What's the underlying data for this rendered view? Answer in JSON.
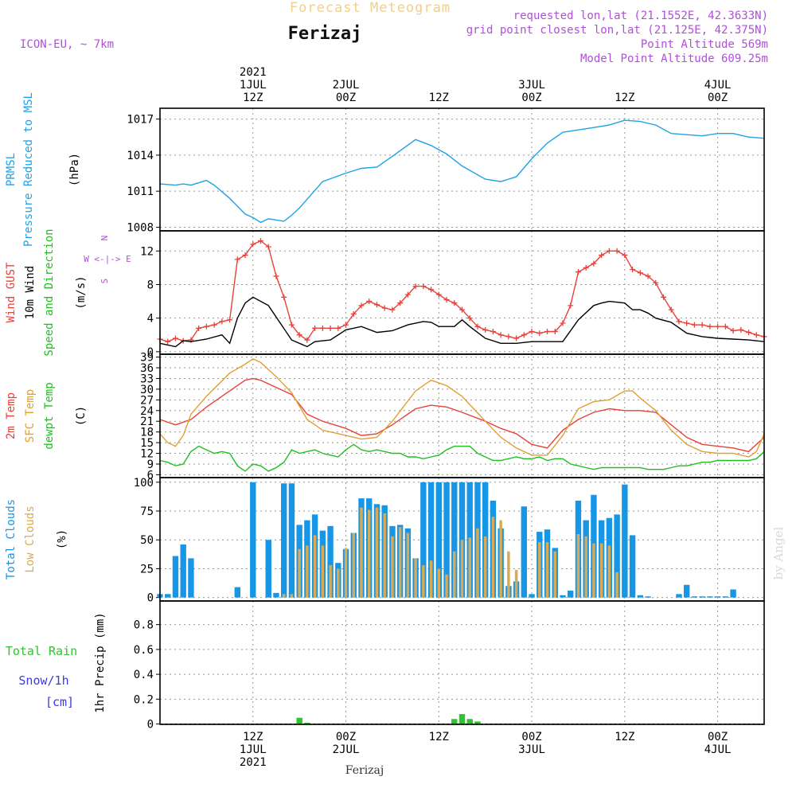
{
  "header": {
    "faint_title": "Forecast Meteogram",
    "location": "Ferizaj",
    "model": "ICON-EU, ~ 7km",
    "requested": "requested lon,lat (21.1552E, 42.3633N)",
    "grid_point": "grid point closest lon,lat (21.125E, 42.375N)",
    "point_altitude": "Point Altitude 569m",
    "model_altitude": "Model Point Altitude 609.25m",
    "credit": "by Angel",
    "footer_location": "Ferizaj"
  },
  "time_axis": {
    "top": [
      [
        "2021",
        "1JUL",
        "12Z"
      ],
      [
        "2JUL",
        "00Z"
      ],
      [
        "12Z"
      ],
      [
        "3JUL",
        "00Z"
      ],
      [
        "12Z"
      ],
      [
        "4JUL",
        "00Z"
      ]
    ],
    "bottom": [
      [
        "12Z",
        "1JUL",
        "2021"
      ],
      [
        "00Z",
        "2JUL"
      ],
      [
        "12Z"
      ],
      [
        "00Z",
        "3JUL"
      ],
      [
        "12Z"
      ],
      [
        "00Z",
        "4JUL"
      ]
    ],
    "tick_hours": [
      12,
      24,
      36,
      48,
      60,
      72
    ]
  },
  "colors": {
    "pressure": "#1fa2e6",
    "gust": "#e8413a",
    "wind": "#000000",
    "dir": "#1fbf1f",
    "t2m": "#e8413a",
    "sfc": "#e0a030",
    "dew": "#1fbf1f",
    "total_clouds": "#1896e6",
    "low_clouds": "#d9aa55",
    "rain": "#2ec42e",
    "snow": "#3b3bdc",
    "direction_guide": "#b04fd8"
  },
  "chart_data": [
    {
      "type": "line",
      "ylabel_parts": [
        [
          "PRMSL",
          "#1fa2e6"
        ],
        [
          "Pressure Reduced to MSL",
          "#1fa2e6"
        ],
        [
          "(hPa)",
          "#000000"
        ]
      ],
      "yticks": [
        1008,
        1011,
        1014,
        1017
      ],
      "ylim": [
        1007.7,
        1017.9
      ],
      "series": [
        {
          "color": "#1fa2e6",
          "x": [
            0,
            2,
            3,
            4,
            5,
            6,
            7,
            9,
            11,
            12,
            13,
            14,
            16,
            17,
            18,
            21,
            24,
            26,
            28,
            30,
            33,
            35,
            37,
            39,
            42,
            44,
            46,
            48,
            50,
            52,
            54,
            56,
            58,
            60,
            62,
            64,
            66,
            68,
            70,
            72,
            74,
            76,
            78
          ],
          "values": [
            1011.6,
            1011.5,
            1011.6,
            1011.5,
            1011.7,
            1011.9,
            1011.5,
            1010.4,
            1009.1,
            1008.8,
            1008.4,
            1008.7,
            1008.5,
            1009.0,
            1009.6,
            1011.8,
            1012.5,
            1012.9,
            1013.0,
            1013.9,
            1015.3,
            1014.8,
            1014.1,
            1013.1,
            1012.0,
            1011.8,
            1012.2,
            1013.7,
            1015.0,
            1015.9,
            1016.1,
            1016.3,
            1016.5,
            1016.9,
            1016.8,
            1016.5,
            1015.8,
            1015.7,
            1015.6,
            1015.8,
            1015.8,
            1015.5,
            1015.4
          ]
        }
      ]
    },
    {
      "type": "line",
      "ylabel_parts": [
        [
          "Wind GUST",
          "#e8413a"
        ],
        [
          "10m Wind",
          "#000000"
        ],
        [
          "Speed and Direction",
          "#1fbf1f"
        ],
        [
          "(m/s)",
          "#000000"
        ]
      ],
      "direction_guide": [
        "N",
        "W <-|-> E",
        "S"
      ],
      "yticks": [
        0,
        4,
        8,
        12
      ],
      "ylim": [
        -0.3,
        14.4
      ],
      "series": [
        {
          "name": "Wind GUST",
          "color": "#e8413a",
          "markers": "+",
          "x": [
            0,
            1,
            2,
            3,
            4,
            5,
            6,
            7,
            8,
            9,
            10,
            11,
            12,
            13,
            14,
            15,
            16,
            17,
            18,
            19,
            20,
            21,
            22,
            23,
            24,
            25,
            26,
            27,
            28,
            29,
            30,
            31,
            32,
            33,
            34,
            35,
            36,
            37,
            38,
            39,
            40,
            41,
            42,
            43,
            44,
            45,
            46,
            47,
            48,
            49,
            50,
            51,
            52,
            53,
            54,
            55,
            56,
            57,
            58,
            59,
            60,
            61,
            62,
            63,
            64,
            65,
            66,
            67,
            68,
            69,
            70,
            71,
            72,
            73,
            74,
            75,
            76,
            77,
            78
          ],
          "values": [
            1.5,
            1.2,
            1.6,
            1.3,
            1.4,
            2.8,
            3.0,
            3.2,
            3.6,
            3.8,
            11.0,
            11.5,
            12.8,
            13.2,
            12.5,
            9.0,
            6.5,
            3.2,
            2.0,
            1.4,
            2.8,
            2.8,
            2.8,
            2.8,
            3.2,
            4.5,
            5.5,
            6.0,
            5.6,
            5.2,
            5.0,
            5.8,
            6.8,
            7.8,
            7.8,
            7.4,
            6.8,
            6.2,
            5.8,
            5.0,
            4.0,
            3.0,
            2.6,
            2.4,
            2.0,
            1.8,
            1.6,
            2.0,
            2.4,
            2.2,
            2.4,
            2.4,
            3.4,
            5.5,
            9.5,
            10.0,
            10.5,
            11.5,
            12.0,
            12.0,
            11.5,
            9.8,
            9.4,
            9.0,
            8.2,
            6.5,
            5.0,
            3.6,
            3.4,
            3.2,
            3.2,
            3.0,
            3.0,
            3.0,
            2.5,
            2.6,
            2.3,
            2.0,
            1.8
          ]
        },
        {
          "name": "10m Wind",
          "color": "#000000",
          "x": [
            0,
            2,
            3,
            4,
            6,
            8,
            9,
            10,
            11,
            12,
            14,
            17,
            19,
            20,
            22,
            24,
            26,
            28,
            30,
            32,
            34,
            35,
            36,
            38,
            39,
            40,
            42,
            44,
            46,
            48,
            50,
            52,
            54,
            56,
            57,
            58,
            60,
            61,
            62,
            63,
            64,
            66,
            68,
            70,
            72,
            74,
            76,
            78
          ],
          "values": [
            1.0,
            0.6,
            1.3,
            1.2,
            1.5,
            2.0,
            1.0,
            4.0,
            5.8,
            6.5,
            5.5,
            1.4,
            0.6,
            1.2,
            1.4,
            2.6,
            3.0,
            2.3,
            2.5,
            3.2,
            3.6,
            3.5,
            3.0,
            3.0,
            3.8,
            3.0,
            1.6,
            1.0,
            1.0,
            1.2,
            1.2,
            1.2,
            3.8,
            5.5,
            5.8,
            6.0,
            5.8,
            5.0,
            5.0,
            4.6,
            4.0,
            3.5,
            2.2,
            1.8,
            1.6,
            1.5,
            1.4,
            1.2
          ]
        }
      ]
    },
    {
      "type": "line",
      "ylabel_parts": [
        [
          "2m Temp",
          "#e8413a"
        ],
        [
          "SFC Temp",
          "#e0a030"
        ],
        [
          "dewpt Temp",
          "#1fbf1f"
        ],
        [
          "(C)",
          "#000000"
        ]
      ],
      "yticks": [
        6,
        9,
        12,
        15,
        18,
        21,
        24,
        27,
        30,
        33,
        36,
        39
      ],
      "ylim": [
        5.2,
        39.8
      ],
      "series": [
        {
          "name": "2m Temp",
          "color": "#e8413a",
          "x": [
            0,
            2,
            4,
            6,
            9,
            11,
            12,
            13,
            15,
            17,
            19,
            21,
            24,
            26,
            28,
            30,
            33,
            35,
            37,
            39,
            42,
            44,
            46,
            48,
            50,
            52,
            54,
            56,
            58,
            60,
            62,
            64,
            66,
            68,
            70,
            72,
            74,
            76,
            78
          ],
          "values": [
            21.5,
            20.0,
            21.5,
            25.0,
            29.5,
            32.5,
            33.0,
            32.5,
            30.5,
            28.5,
            23.0,
            21.0,
            19.0,
            17.0,
            17.5,
            20.0,
            24.5,
            25.5,
            25.0,
            23.5,
            21.0,
            19.0,
            17.5,
            14.5,
            13.5,
            18.5,
            21.5,
            23.5,
            24.5,
            24.0,
            24.0,
            23.5,
            20.0,
            16.5,
            14.5,
            14.0,
            13.5,
            12.5,
            16.5
          ]
        },
        {
          "name": "SFC Temp",
          "color": "#e0a030",
          "x": [
            0,
            1,
            2,
            3,
            4,
            6,
            9,
            11,
            12,
            13,
            15,
            17,
            19,
            21,
            24,
            26,
            28,
            30,
            33,
            35,
            37,
            39,
            42,
            44,
            46,
            48,
            50,
            52,
            54,
            56,
            58,
            60,
            61,
            62,
            64,
            66,
            68,
            70,
            72,
            74,
            76,
            77,
            78
          ],
          "values": [
            17.5,
            15.0,
            14.0,
            17.0,
            23.0,
            28.0,
            34.5,
            37.0,
            38.5,
            37.5,
            33.5,
            29.0,
            21.5,
            18.5,
            17.0,
            16.0,
            16.5,
            21.0,
            29.5,
            32.5,
            31.0,
            28.0,
            21.0,
            16.5,
            13.5,
            11.5,
            11.5,
            17.0,
            24.5,
            26.5,
            27.0,
            29.5,
            29.5,
            27.5,
            24.0,
            18.5,
            14.5,
            12.5,
            12.0,
            12.0,
            11.0,
            12.5,
            17.5
          ]
        },
        {
          "name": "dewpt Temp",
          "color": "#1fbf1f",
          "x": [
            0,
            1,
            2,
            3,
            4,
            5,
            6,
            7,
            8,
            9,
            10,
            11,
            12,
            13,
            14,
            15,
            16,
            17,
            18,
            19,
            20,
            21,
            22,
            23,
            24,
            25,
            26,
            27,
            28,
            29,
            30,
            31,
            32,
            33,
            34,
            35,
            36,
            37,
            38,
            39,
            40,
            41,
            42,
            43,
            44,
            45,
            46,
            47,
            48,
            49,
            50,
            51,
            52,
            53,
            54,
            55,
            56,
            57,
            58,
            59,
            60,
            61,
            62,
            63,
            64,
            65,
            66,
            67,
            68,
            69,
            70,
            71,
            72,
            73,
            74,
            75,
            76,
            77,
            78
          ],
          "values": [
            10.0,
            9.5,
            8.5,
            9.0,
            12.5,
            14.0,
            13.0,
            12.0,
            12.5,
            12.0,
            8.5,
            7.0,
            9.0,
            8.5,
            7.0,
            8.0,
            9.5,
            13.0,
            12.0,
            12.5,
            13.0,
            12.0,
            11.5,
            11.0,
            13.0,
            14.5,
            13.0,
            12.5,
            13.0,
            12.5,
            12.0,
            12.0,
            11.0,
            11.0,
            10.5,
            11.0,
            11.5,
            13.0,
            14.0,
            14.0,
            14.0,
            12.0,
            11.0,
            10.0,
            10.0,
            10.5,
            11.0,
            10.5,
            10.5,
            11.0,
            10.0,
            10.5,
            10.5,
            9.0,
            8.5,
            8.0,
            7.5,
            8.0,
            8.0,
            8.0,
            8.0,
            8.0,
            8.0,
            7.5,
            7.5,
            7.5,
            8.0,
            8.5,
            8.5,
            9.0,
            9.5,
            9.5,
            10.0,
            10.0,
            10.0,
            10.0,
            10.0,
            10.5,
            12.5
          ]
        }
      ]
    },
    {
      "type": "bar",
      "ylabel_parts": [
        [
          "Total Clouds",
          "#1896e6"
        ],
        [
          "Low Clouds",
          "#d9aa55"
        ],
        [
          "(%)",
          "#000000"
        ]
      ],
      "yticks": [
        0,
        25,
        50,
        75,
        100
      ],
      "ylim": [
        -3,
        104
      ],
      "x": [
        0,
        1,
        2,
        3,
        4,
        5,
        6,
        7,
        8,
        9,
        10,
        11,
        12,
        13,
        14,
        15,
        16,
        17,
        18,
        19,
        20,
        21,
        22,
        23,
        24,
        25,
        26,
        27,
        28,
        29,
        30,
        31,
        32,
        33,
        34,
        35,
        36,
        37,
        38,
        39,
        40,
        41,
        42,
        43,
        44,
        45,
        46,
        47,
        48,
        49,
        50,
        51,
        52,
        53,
        54,
        55,
        56,
        57,
        58,
        59,
        60,
        61,
        62,
        63,
        64,
        65,
        66,
        67,
        68,
        69,
        70,
        71,
        72,
        73,
        74,
        75,
        76,
        77,
        78
      ],
      "series": [
        {
          "name": "Total Clouds",
          "color": "#1896e6",
          "values": [
            3,
            3,
            36,
            46,
            34,
            0,
            0,
            0,
            0,
            0,
            9,
            0,
            100,
            0,
            50,
            4,
            99,
            99,
            63,
            67,
            72,
            58,
            62,
            30,
            42,
            56,
            86,
            86,
            81,
            80,
            62,
            63,
            60,
            34,
            100,
            100,
            100,
            100,
            100,
            100,
            100,
            100,
            100,
            84,
            60,
            10,
            14,
            79,
            3,
            57,
            59,
            43,
            2,
            6,
            84,
            67,
            89,
            67,
            69,
            72,
            98,
            54,
            2,
            1,
            0,
            0,
            0,
            3,
            11,
            1,
            1,
            1,
            1,
            1,
            7,
            0,
            0,
            0,
            0
          ]
        },
        {
          "name": "Low Clouds",
          "color": "#d9aa55",
          "values": [
            0,
            0,
            0,
            0,
            0,
            0,
            0,
            0,
            0,
            0,
            0,
            0,
            0,
            0,
            0,
            0,
            3,
            3,
            42,
            45,
            54,
            45,
            28,
            25,
            43,
            56,
            78,
            76,
            78,
            73,
            53,
            61,
            56,
            34,
            28,
            32,
            25,
            20,
            40,
            50,
            52,
            60,
            53,
            70,
            67,
            40,
            24,
            0,
            0,
            48,
            48,
            40,
            0,
            0,
            55,
            53,
            47,
            47,
            45,
            22,
            0,
            0,
            0,
            0,
            0,
            0,
            0,
            0,
            0,
            0,
            0,
            0,
            0,
            0,
            0,
            0,
            0,
            0,
            0
          ]
        }
      ]
    },
    {
      "type": "bar",
      "ylabel_parts": [
        [
          "1hr Precip (mm)",
          "#000000"
        ]
      ],
      "side_labels": [
        [
          "Total  Rain",
          "#2ec42e"
        ],
        [
          "Snow/1h",
          "#3b3bdc"
        ],
        [
          "[cm]",
          "#3b3bdc"
        ]
      ],
      "yticks": [
        0,
        0.2,
        0.4,
        0.6,
        0.8
      ],
      "ylim": [
        -0.003,
        0.99
      ],
      "series": [
        {
          "name": "Total Rain",
          "color": "#2ec42e",
          "x": [
            18,
            19,
            38,
            39,
            40,
            41
          ],
          "values": [
            0.05,
            0.01,
            0.04,
            0.08,
            0.04,
            0.02
          ]
        }
      ]
    }
  ]
}
